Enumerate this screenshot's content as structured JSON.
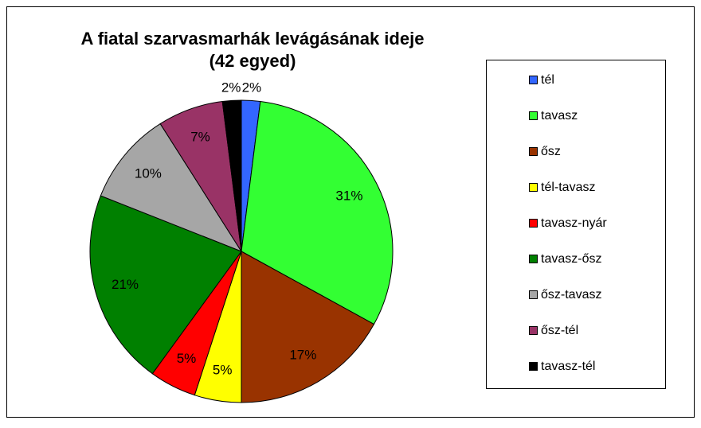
{
  "chart_data": {
    "type": "pie",
    "title": "A fiatal szarvasmarhák levágásának ideje",
    "subtitle": "(42 egyed)",
    "categories": [
      "tél",
      "tavasz",
      "ősz",
      "tél-tavasz",
      "tavasz-nyár",
      "tavasz-ősz",
      "ősz-tavasz",
      "ősz-tél",
      "tavasz-tél"
    ],
    "values": [
      2,
      31,
      17,
      5,
      5,
      21,
      10,
      7,
      2
    ],
    "value_labels": [
      "2%",
      "31%",
      "17%",
      "5%",
      "5%",
      "21%",
      "10%",
      "7%",
      "2%"
    ],
    "colors": [
      "#3366ff",
      "#33ff33",
      "#993300",
      "#ffff00",
      "#ff0000",
      "#008000",
      "#a6a6a6",
      "#993366",
      "#000000"
    ],
    "legend": "right"
  }
}
